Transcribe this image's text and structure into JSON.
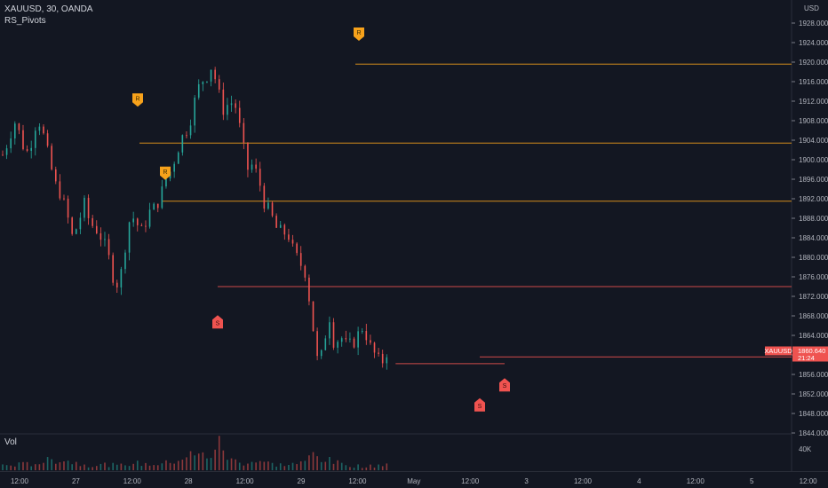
{
  "header": {
    "symbol_line": "XAUUSD, 30, OANDA",
    "indicator": "RS_Pivots",
    "volume_label": "Vol"
  },
  "colors": {
    "background": "#131722",
    "up": "#26a69a",
    "down": "#ef5350",
    "resistance": "#f7a21b",
    "support": "#ef5350",
    "grid": "#1e222d",
    "axis_text": "#b2b5be"
  },
  "chart_data": {
    "type": "candlestick",
    "currency": "USD",
    "ylim": [
      1844,
      1932
    ],
    "y_ticks": [
      "1928.000",
      "1924.000",
      "1920.000",
      "1916.000",
      "1912.000",
      "1908.000",
      "1904.000",
      "1900.000",
      "1896.000",
      "1892.000",
      "1888.000",
      "1884.000",
      "1880.000",
      "1876.000",
      "1872.000",
      "1868.000",
      "1864.000",
      "1860.000",
      "1856.000",
      "1852.000",
      "1848.000",
      "1844.000"
    ],
    "x_ticks": [
      "12:00",
      "27",
      "12:00",
      "28",
      "12:00",
      "29",
      "12:00",
      "May",
      "12:00",
      "3",
      "12:00",
      "4",
      "12:00",
      "5",
      "12:00"
    ],
    "price_path": [
      [
        0,
        1901
      ],
      [
        1,
        1904
      ],
      [
        2,
        1908
      ],
      [
        3,
        1905
      ],
      [
        4,
        1901
      ],
      [
        5,
        1904
      ],
      [
        6,
        1909
      ],
      [
        7,
        1905
      ],
      [
        8,
        1900
      ],
      [
        9,
        1895
      ],
      [
        10,
        1893
      ],
      [
        11,
        1889
      ],
      [
        12,
        1884
      ],
      [
        13,
        1887
      ],
      [
        14,
        1891
      ],
      [
        15,
        1887
      ],
      [
        16,
        1886
      ],
      [
        17,
        1884
      ],
      [
        18,
        1881
      ],
      [
        19,
        1876
      ],
      [
        20,
        1874
      ],
      [
        21,
        1882
      ],
      [
        22,
        1889
      ],
      [
        23,
        1887
      ],
      [
        24,
        1885
      ],
      [
        25,
        1889
      ],
      [
        26,
        1890
      ],
      [
        27,
        1892
      ],
      [
        28,
        1896
      ],
      [
        29,
        1898
      ],
      [
        30,
        1902
      ],
      [
        31,
        1905
      ],
      [
        32,
        1907
      ],
      [
        33,
        1912
      ],
      [
        34,
        1916
      ],
      [
        35,
        1917
      ],
      [
        36,
        1919.5
      ],
      [
        37,
        1914
      ],
      [
        38,
        1910
      ],
      [
        39,
        1912
      ],
      [
        40,
        1911
      ],
      [
        41,
        1905
      ],
      [
        42,
        1898
      ],
      [
        43,
        1899
      ],
      [
        44,
        1896
      ],
      [
        45,
        1891
      ],
      [
        46,
        1889
      ],
      [
        47,
        1886
      ],
      [
        48,
        1885
      ],
      [
        49,
        1885
      ],
      [
        50,
        1881
      ],
      [
        51,
        1879
      ],
      [
        52,
        1877
      ],
      [
        53,
        1869
      ],
      [
        54,
        1859
      ],
      [
        55,
        1860
      ],
      [
        56,
        1869
      ],
      [
        57,
        1862
      ],
      [
        58,
        1864
      ],
      [
        59,
        1862
      ],
      [
        60,
        1862
      ],
      [
        61,
        1864
      ],
      [
        62,
        1866
      ],
      [
        63,
        1862
      ],
      [
        64,
        1860
      ],
      [
        65,
        1858
      ],
      [
        66,
        1860.64
      ]
    ],
    "last_price": "1860.640",
    "symbol_badge": "XAUUSD",
    "countdown": "21:24",
    "pivot_lines": [
      {
        "kind": "resistance",
        "price": 1919.6
      },
      {
        "kind": "resistance",
        "price": 1903.4
      },
      {
        "kind": "resistance",
        "price": 1891.5
      },
      {
        "kind": "support",
        "price": 1874.0
      },
      {
        "kind": "support",
        "price": 1859.6
      },
      {
        "kind": "support",
        "price": 1858.2
      }
    ],
    "markers": [
      {
        "label": "R",
        "kind": "resistance"
      },
      {
        "label": "R",
        "kind": "resistance"
      },
      {
        "label": "R",
        "kind": "resistance"
      },
      {
        "label": "S",
        "kind": "support"
      },
      {
        "label": "S",
        "kind": "support"
      },
      {
        "label": "S",
        "kind": "support"
      }
    ],
    "volume": {
      "label": "Vol",
      "ylim": [
        0,
        60000
      ],
      "ticks": [
        "40K"
      ],
      "profile": [
        [
          0,
          9000
        ],
        [
          5,
          12000
        ],
        [
          10,
          22000
        ],
        [
          12,
          15000
        ],
        [
          15,
          9000
        ],
        [
          18,
          11000
        ],
        [
          20,
          8000
        ],
        [
          22,
          14000
        ],
        [
          25,
          11000
        ],
        [
          28,
          13000
        ],
        [
          30,
          20000
        ],
        [
          32,
          28000
        ],
        [
          34,
          27000
        ],
        [
          36,
          30000
        ],
        [
          37,
          52000
        ],
        [
          39,
          20000
        ],
        [
          41,
          14000
        ],
        [
          44,
          18000
        ],
        [
          46,
          12000
        ],
        [
          48,
          10000
        ],
        [
          52,
          14000
        ],
        [
          53,
          32000
        ],
        [
          54,
          28000
        ],
        [
          56,
          18000
        ],
        [
          58,
          12000
        ],
        [
          60,
          9000
        ],
        [
          63,
          7000
        ],
        [
          66,
          13000
        ]
      ]
    }
  }
}
